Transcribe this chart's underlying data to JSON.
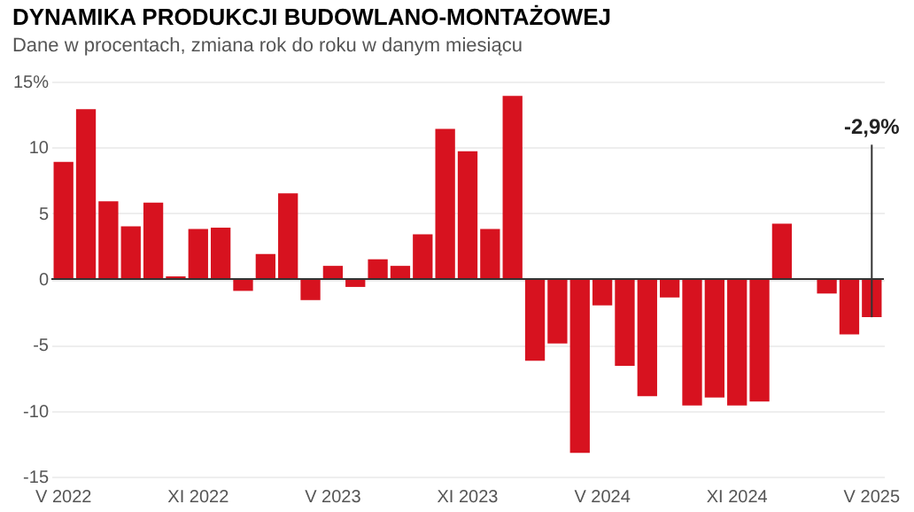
{
  "chart_data": {
    "type": "bar",
    "title": "DYNAMIKA PRODUKCJI BUDOWLANO-MONTAŻOWEJ",
    "subtitle": "Dane w procentach, zmiana rok do roku w danym miesiącu",
    "categories": [
      "V 2022",
      null,
      null,
      null,
      null,
      null,
      "XI 2022",
      null,
      null,
      null,
      null,
      null,
      "V 2023",
      null,
      null,
      null,
      null,
      null,
      "XI 2023",
      null,
      null,
      null,
      null,
      null,
      "V 2024",
      null,
      null,
      null,
      null,
      null,
      "XI 2024",
      null,
      null,
      null,
      null,
      null,
      "V 2025"
    ],
    "values": [
      8.9,
      12.9,
      5.9,
      4.0,
      5.8,
      0.2,
      3.8,
      3.9,
      -0.9,
      1.9,
      6.5,
      -1.6,
      1.0,
      -0.6,
      1.5,
      1.0,
      3.4,
      11.4,
      9.7,
      3.8,
      13.9,
      -6.2,
      -4.9,
      -13.2,
      -2.0,
      -6.6,
      -8.9,
      -1.4,
      -9.6,
      -9.0,
      -9.6,
      -9.3,
      4.2,
      null,
      -1.1,
      -4.2,
      -2.9
    ],
    "color": "#d7121f",
    "ylim": [
      -15,
      15
    ],
    "yticks": [
      -15,
      -10,
      -5,
      0,
      5,
      10,
      {
        "value": 15,
        "label": "15%"
      }
    ],
    "grid": "y",
    "annotations": [
      {
        "text": "-2,9%",
        "x": "V 2025",
        "y": -2.9
      }
    ]
  }
}
